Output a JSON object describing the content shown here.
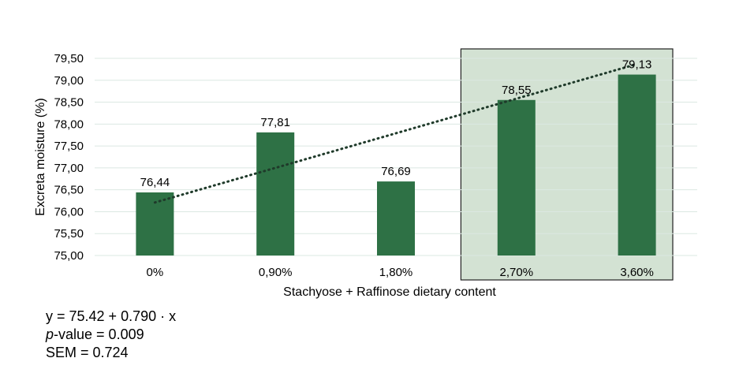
{
  "chart_data": {
    "type": "bar",
    "categories": [
      "0%",
      "0,90%",
      "1,80%",
      "2,70%",
      "3,60%"
    ],
    "values": [
      76.44,
      77.81,
      76.69,
      78.55,
      79.13
    ],
    "value_labels": [
      "76,44",
      "77,81",
      "76,69",
      "78,55",
      "79,13"
    ],
    "xlabel": "Stachyose + Raffinose dietary content",
    "ylabel": "Excreta moisture (%)",
    "ylim": [
      75.0,
      79.5
    ],
    "yticks": [
      "75,00",
      "75,50",
      "76,00",
      "76,50",
      "77,00",
      "77,50",
      "78,00",
      "78,50",
      "79,00",
      "79,50"
    ],
    "grid": true,
    "trendline": {
      "style": "dotted",
      "intercept": 75.42,
      "slope": 0.79
    },
    "highlighted_categories": [
      "2,70%",
      "3,60%"
    ],
    "colors": {
      "bar": "#2e7145",
      "trendline": "#1f3a2a",
      "highlight_fill": "#d3e2d3",
      "highlight_border": "#222222",
      "grid": "#dbe8e2"
    }
  },
  "stats": {
    "equation": "y = 75.42 + 0.790 · x",
    "pvalue_symbol": "p",
    "pvalue_text": "-value = 0.009",
    "sem": "SEM = 0.724"
  }
}
